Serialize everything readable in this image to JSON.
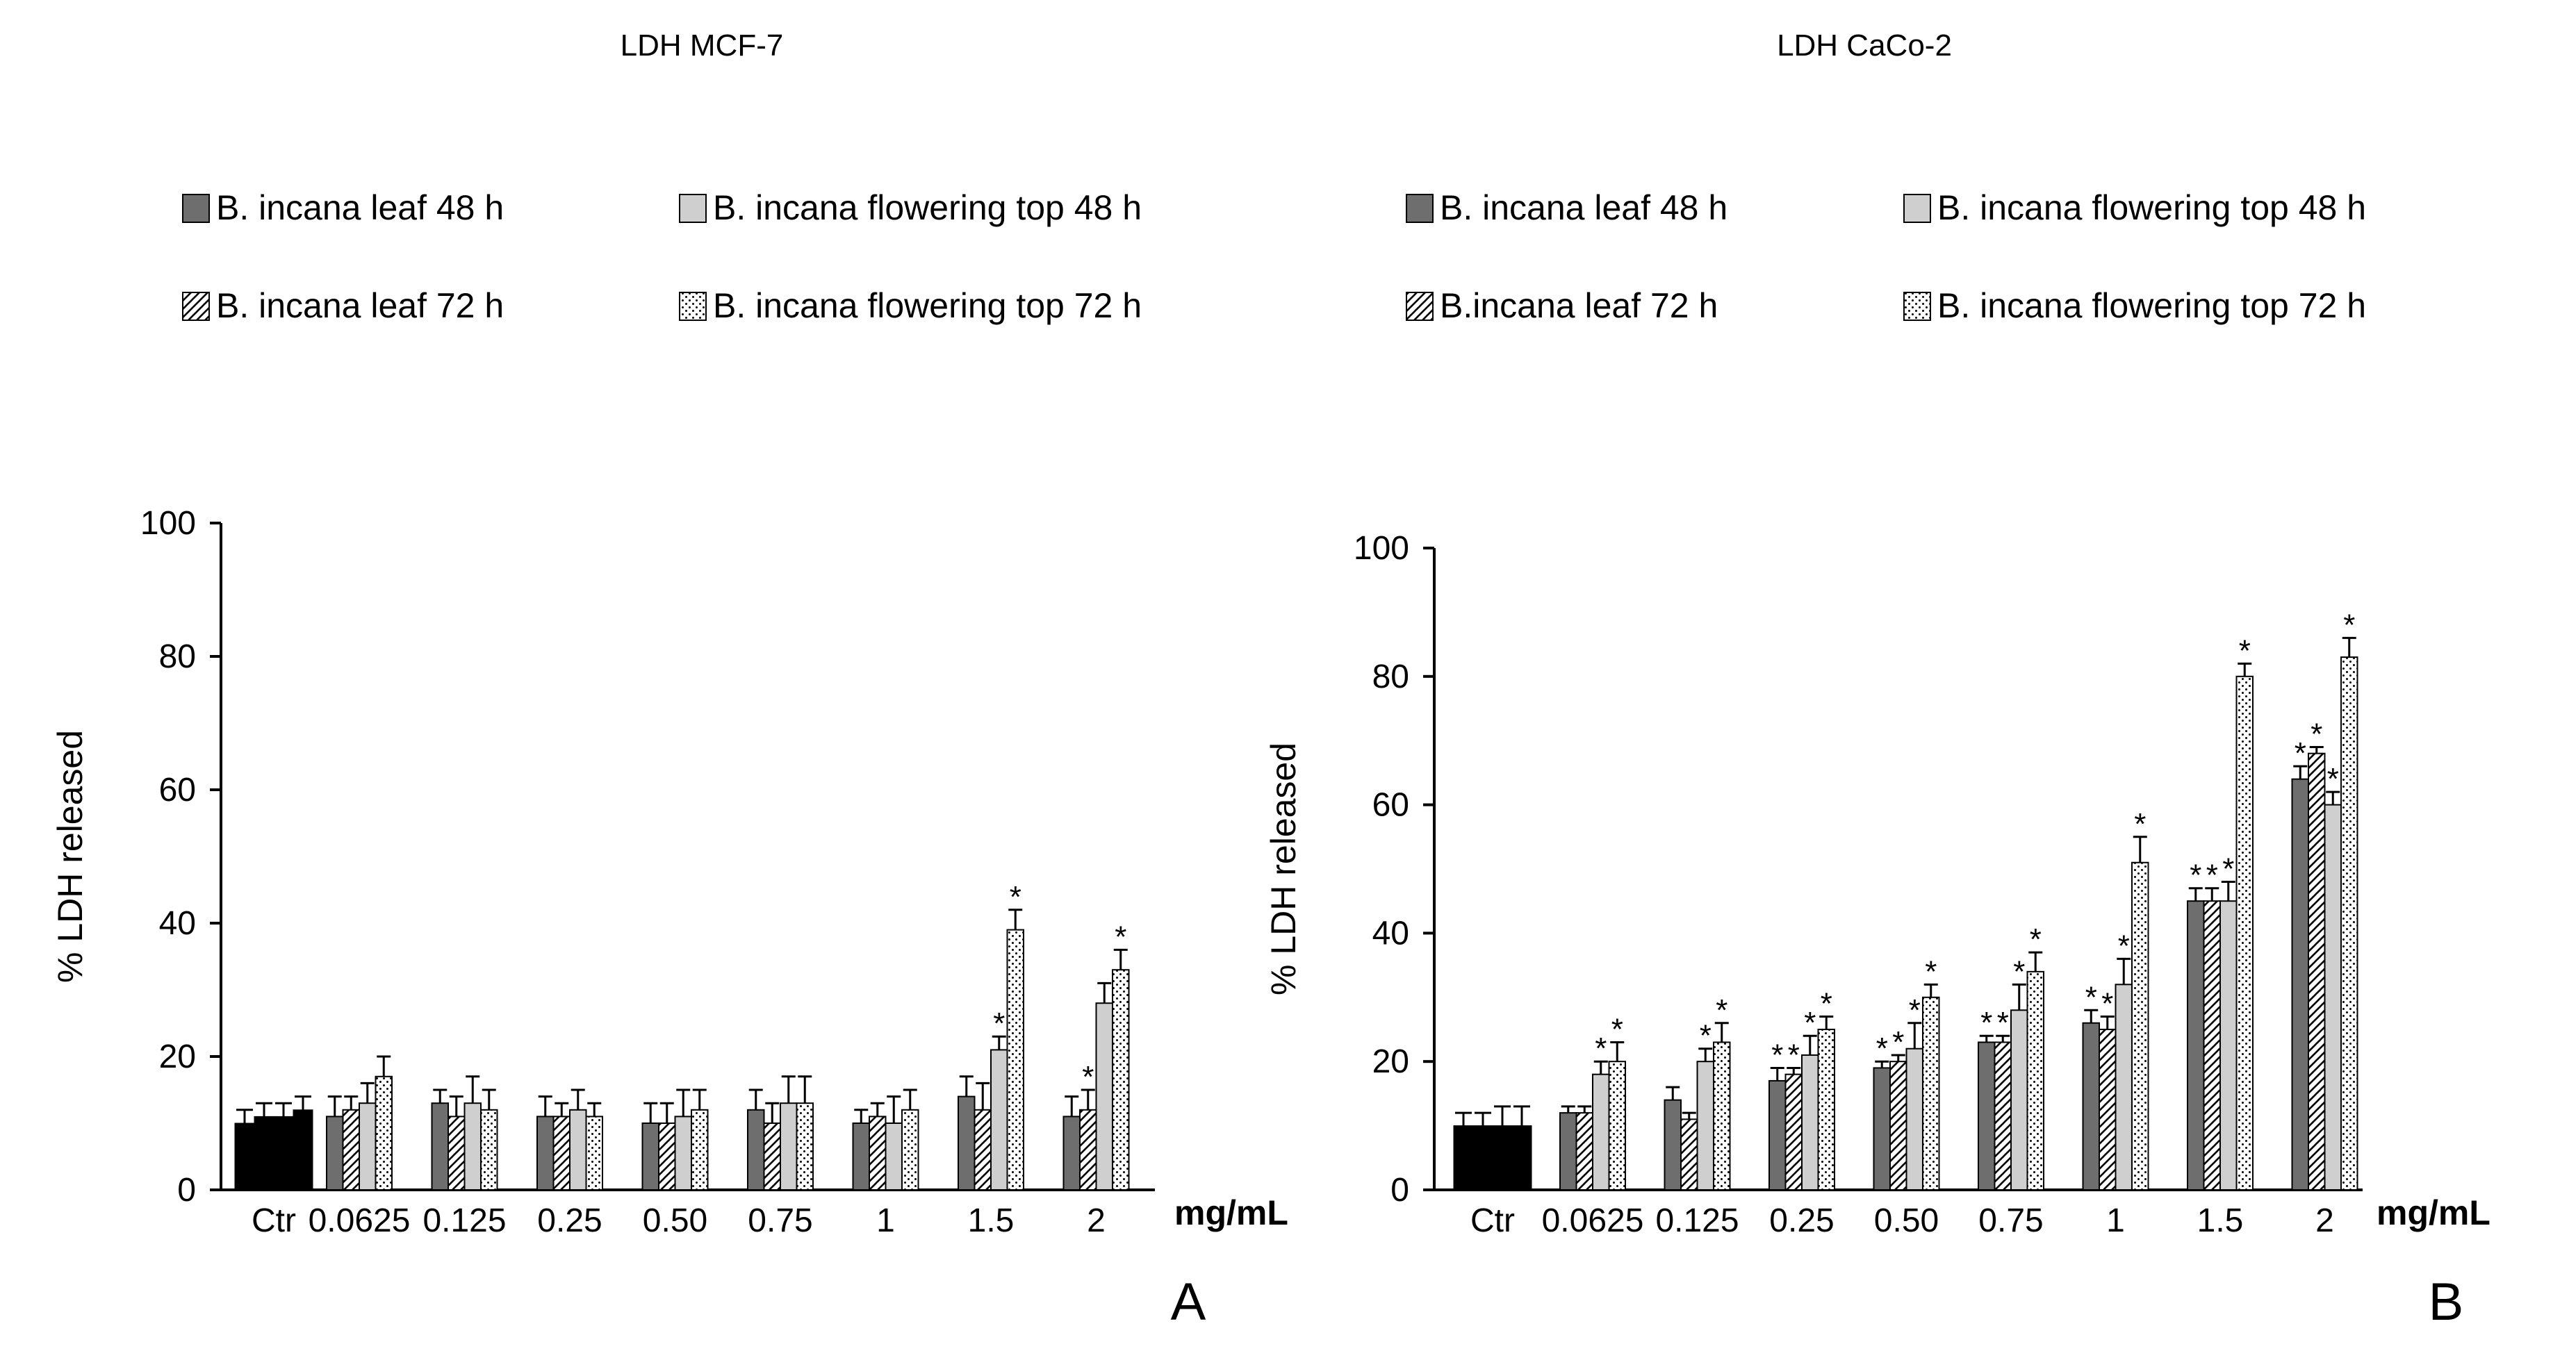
{
  "unit_label": "mg/mL",
  "chart_data": [
    {
      "type": "bar",
      "panel_letter": "A",
      "title": "LDH  MCF-7",
      "xlabel": "",
      "ylabel": "% LDH released",
      "ylim": [
        0,
        100
      ],
      "yticks": [
        "0",
        "20",
        "40",
        "60",
        "80",
        "100"
      ],
      "grid": false,
      "legend": "top, two rows",
      "control": {
        "label": "Ctr",
        "values": [
          10,
          11,
          11,
          12
        ],
        "errors": [
          2,
          2,
          2,
          2
        ]
      },
      "categories": [
        "0.0625",
        "0.125",
        "0.25",
        "0.50",
        "0.75",
        "1",
        "1.5",
        "2"
      ],
      "series": [
        {
          "name": "B. incana leaf 48 h",
          "pattern": "solid-dark",
          "values": [
            11,
            13,
            11,
            10,
            12,
            10,
            14,
            11
          ],
          "errors": [
            3,
            2,
            3,
            3,
            3,
            2,
            3,
            3
          ],
          "significant": [
            false,
            false,
            false,
            false,
            false,
            false,
            false,
            false
          ]
        },
        {
          "name": "B. incana leaf 72 h",
          "pattern": "hatched",
          "values": [
            12,
            11,
            11,
            10,
            10,
            11,
            12,
            12
          ],
          "errors": [
            2,
            3,
            2,
            3,
            3,
            2,
            4,
            3
          ],
          "significant": [
            false,
            false,
            false,
            false,
            false,
            false,
            false,
            true
          ]
        },
        {
          "name": "B. incana flowering top 48 h",
          "pattern": "solid-light",
          "values": [
            13,
            13,
            12,
            11,
            13,
            10,
            21,
            28
          ],
          "errors": [
            3,
            4,
            3,
            4,
            4,
            4,
            2,
            3
          ],
          "significant": [
            false,
            false,
            false,
            false,
            false,
            false,
            true,
            false
          ]
        },
        {
          "name": "B. incana flowering top 72 h",
          "pattern": "dotted",
          "values": [
            17,
            12,
            11,
            12,
            13,
            12,
            39,
            33
          ],
          "errors": [
            3,
            3,
            2,
            3,
            4,
            3,
            3,
            3
          ],
          "significant": [
            false,
            false,
            false,
            false,
            false,
            false,
            true,
            true
          ]
        }
      ]
    },
    {
      "type": "bar",
      "panel_letter": "B",
      "title": "LDH CaCo-2",
      "xlabel": "",
      "ylabel": "% LDH released",
      "ylim": [
        0,
        100
      ],
      "yticks": [
        "0",
        "20",
        "40",
        "60",
        "80",
        "100"
      ],
      "grid": false,
      "legend": "top, two rows",
      "control": {
        "label": "Ctr",
        "values": [
          10,
          10,
          10,
          10
        ],
        "errors": [
          2,
          2,
          3,
          3
        ]
      },
      "categories": [
        "0.0625",
        "0.125",
        "0.25",
        "0.50",
        "0.75",
        "1",
        "1.5",
        "2"
      ],
      "series": [
        {
          "name": "B. incana leaf 48 h",
          "pattern": "solid-dark",
          "values": [
            12,
            14,
            17,
            19,
            23,
            26,
            45,
            64
          ],
          "errors": [
            1,
            2,
            2,
            1,
            1,
            2,
            2,
            2
          ],
          "significant": [
            false,
            false,
            true,
            true,
            true,
            true,
            true,
            true
          ]
        },
        {
          "name": "B.incana leaf 72 h",
          "pattern": "hatched",
          "values": [
            12,
            11,
            18,
            20,
            23,
            25,
            45,
            68
          ],
          "errors": [
            1,
            1,
            1,
            1,
            1,
            2,
            2,
            1
          ],
          "significant": [
            false,
            false,
            true,
            true,
            true,
            true,
            true,
            true
          ]
        },
        {
          "name": "B. incana flowering top 48 h",
          "pattern": "solid-light",
          "values": [
            18,
            20,
            21,
            22,
            28,
            32,
            45,
            60
          ],
          "errors": [
            2,
            2,
            3,
            4,
            4,
            4,
            3,
            2
          ],
          "significant": [
            true,
            true,
            true,
            true,
            true,
            true,
            true,
            true
          ]
        },
        {
          "name": "B. incana flowering top 72 h",
          "pattern": "dotted",
          "values": [
            20,
            23,
            25,
            30,
            34,
            51,
            80,
            83
          ],
          "errors": [
            3,
            3,
            2,
            2,
            3,
            4,
            2,
            3
          ],
          "significant": [
            true,
            true,
            true,
            true,
            true,
            true,
            true,
            true
          ]
        }
      ]
    }
  ]
}
